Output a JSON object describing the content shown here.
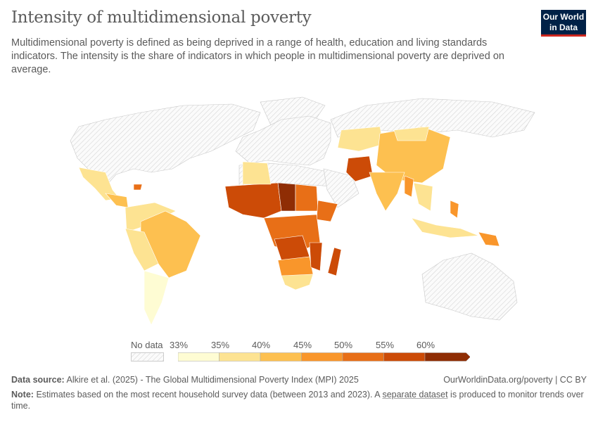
{
  "title": "Intensity of multidimensional poverty",
  "subtitle": "Multidimensional poverty is defined as being deprived in a range of health, education and living standards indicators. The intensity is the share of indicators in which people in multidimensional poverty are deprived on average.",
  "logo": {
    "line1": "Our World",
    "line2": "in Data",
    "bg": "#002147",
    "accent": "#ce261e"
  },
  "legend": {
    "no_data_label": "No data",
    "ticks": [
      "33%",
      "35%",
      "40%",
      "45%",
      "50%",
      "55%",
      "60%"
    ],
    "colors": [
      "#fefcd3",
      "#fde392",
      "#fdc050",
      "#f9962b",
      "#e86f17",
      "#cc4b07",
      "#8f2d04"
    ]
  },
  "footer": {
    "source_label": "Data source:",
    "source_text": "Alkire et al. (2025) - The Global Multidimensional Poverty Index (MPI) 2025",
    "url": "OurWorldinData.org/poverty | CC BY",
    "note_label": "Note:",
    "note_text1": "Estimates based on the most recent household survey data (between 2013 and 2023). A ",
    "note_link": "separate dataset",
    "note_text2": " is produced to monitor trends over time."
  }
}
